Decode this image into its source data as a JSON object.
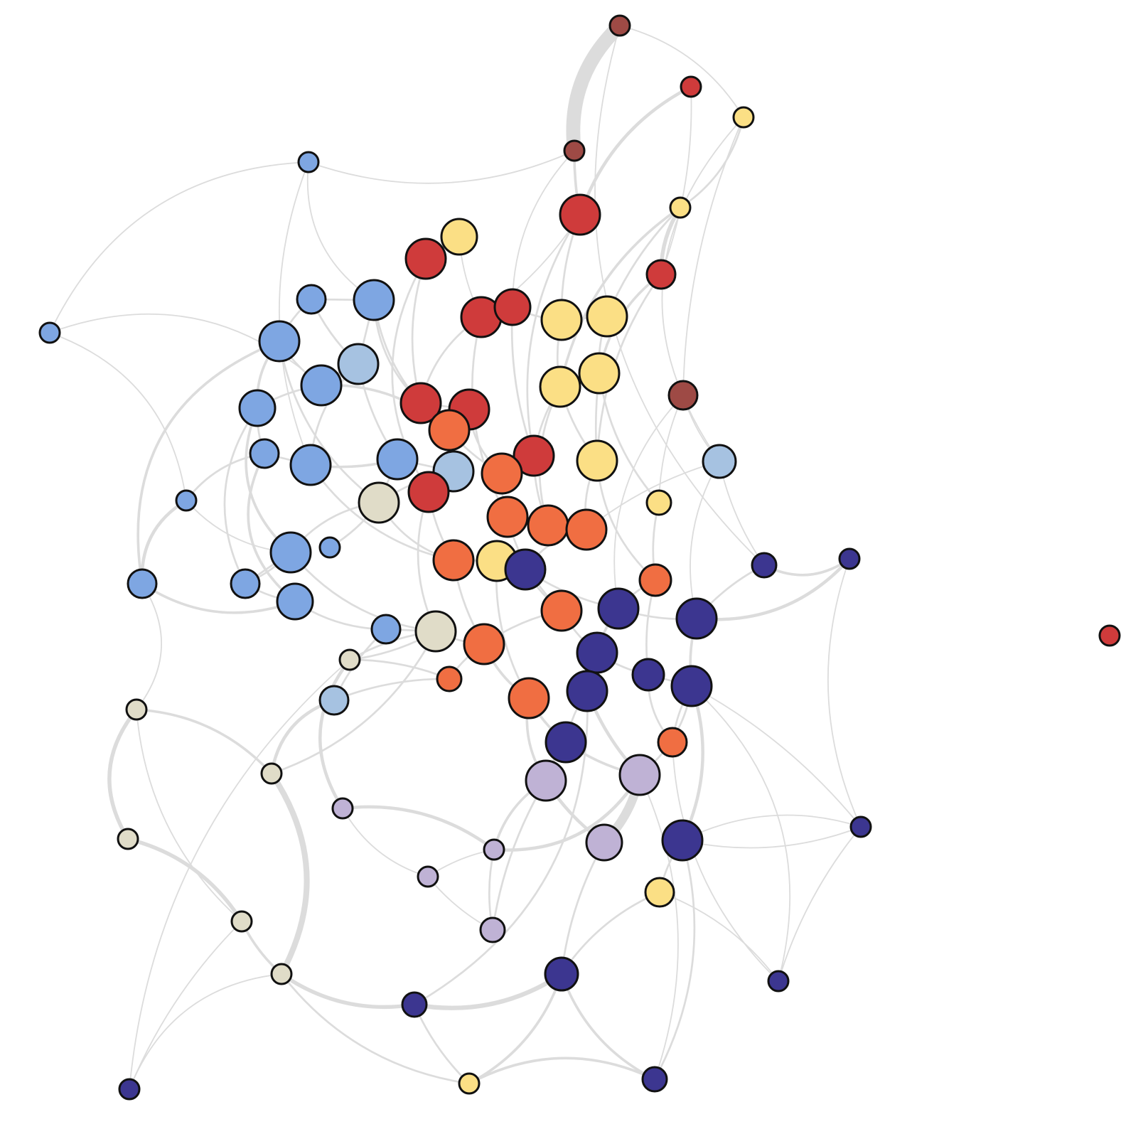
{
  "diagram": {
    "type": "network-graph",
    "background": "#ffffff",
    "edge_color": "#dcdcdc",
    "node_outline_color": "#111111",
    "palette": {
      "brown": "#9e4a45",
      "red": "#cf3b3b",
      "yellow": "#fbdf85",
      "orange": "#f06e42",
      "blue": "#7ea6e2",
      "lightblue": "#a6c2e1",
      "beige": "#e0dcc8",
      "navy": "#3c3690",
      "lavender": "#bfb2d5"
    },
    "group_count": 9,
    "node_count": 96
  }
}
